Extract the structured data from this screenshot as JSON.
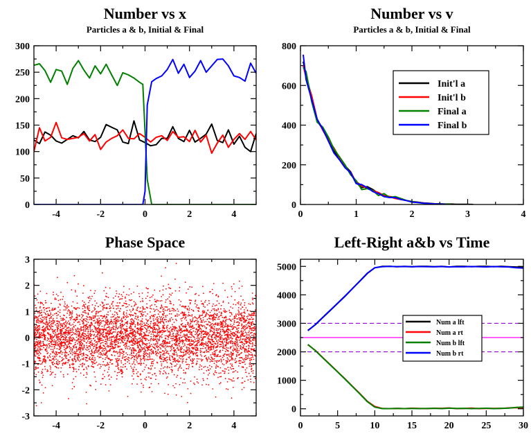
{
  "chart_data": [
    {
      "id": "number-vs-x",
      "type": "line",
      "title": "Number vs x",
      "subtitle": "Particles a & b, Initial & Final",
      "xlabel": "",
      "ylabel": "",
      "xlim": [
        -5,
        5
      ],
      "ylim": [
        0,
        300
      ],
      "xticks": [
        -4,
        -2,
        0,
        2,
        4
      ],
      "xtick_labels": [
        "-4",
        "-2",
        "0",
        "2",
        "4"
      ],
      "yticks": [
        0,
        50,
        100,
        150,
        200,
        250,
        300
      ],
      "ytick_labels": [
        "0",
        "50",
        "100",
        "150",
        "200",
        "250",
        "300"
      ],
      "legend": false,
      "series": [
        {
          "color": "#000000",
          "x": [
            -5,
            -4.75,
            -4.5,
            -4.25,
            -4,
            -3.75,
            -3.5,
            -3.25,
            -3,
            -2.75,
            -2.5,
            -2.25,
            -2,
            -1.75,
            -1.5,
            -1.25,
            -1,
            -0.75,
            -0.5,
            -0.25,
            0,
            0.25,
            0.5,
            0.75,
            1,
            1.25,
            1.5,
            1.75,
            2,
            2.25,
            2.5,
            2.75,
            3,
            3.25,
            3.5,
            3.75,
            4,
            4.25,
            4.5,
            4.75,
            5
          ],
          "y": [
            122,
            115,
            137,
            131,
            120,
            116,
            123,
            130,
            126,
            138,
            122,
            119,
            127,
            151,
            146,
            141,
            118,
            115,
            158,
            122,
            117,
            111,
            113,
            125,
            125,
            147,
            125,
            119,
            140,
            118,
            125,
            133,
            152,
            121,
            117,
            141,
            114,
            129,
            108,
            100,
            134
          ]
        },
        {
          "color": "#ff0000",
          "x": [
            -5,
            -4.75,
            -4.5,
            -4.25,
            -4,
            -3.75,
            -3.5,
            -3.25,
            -3,
            -2.75,
            -2.5,
            -2.25,
            -2,
            -1.75,
            -1.5,
            -1.25,
            -1,
            -0.75,
            -0.5,
            -0.25,
            0,
            0.25,
            0.5,
            0.75,
            1,
            1.25,
            1.5,
            1.75,
            2,
            2.25,
            2.5,
            2.75,
            3,
            3.25,
            3.5,
            3.75,
            4,
            4.25,
            4.5,
            4.75,
            5
          ],
          "y": [
            100,
            145,
            120,
            127,
            155,
            126,
            123,
            125,
            127,
            134,
            120,
            132,
            104,
            118,
            125,
            130,
            141,
            125,
            124,
            134,
            127,
            118,
            127,
            130,
            121,
            138,
            127,
            128,
            119,
            140,
            118,
            131,
            97,
            116,
            131,
            108,
            123,
            134,
            123,
            138,
            122
          ]
        },
        {
          "color": "#008000",
          "x": [
            -5,
            -4.75,
            -4.5,
            -4.25,
            -4,
            -3.75,
            -3.5,
            -3.25,
            -3,
            -2.75,
            -2.5,
            -2.25,
            -2,
            -1.75,
            -1.5,
            -1.25,
            -1,
            -0.75,
            -0.5,
            -0.25,
            -0.1,
            0.1,
            0.3,
            5
          ],
          "y": [
            263,
            266,
            253,
            231,
            255,
            252,
            227,
            257,
            272,
            254,
            239,
            262,
            247,
            265,
            245,
            225,
            249,
            245,
            239,
            231,
            227,
            47,
            0,
            0
          ]
        },
        {
          "color": "#0000ff",
          "x": [
            -5,
            -0.1,
            0,
            0.1,
            0.3,
            0.5,
            0.75,
            1,
            1.25,
            1.5,
            1.75,
            2,
            2.25,
            2.5,
            2.75,
            3,
            3.25,
            3.5,
            3.75,
            4,
            4.25,
            4.5,
            4.75,
            5
          ],
          "y": [
            0,
            0,
            25,
            188,
            232,
            238,
            243,
            255,
            274,
            248,
            265,
            240,
            252,
            272,
            250,
            262,
            274,
            275,
            262,
            243,
            240,
            233,
            267,
            248
          ]
        }
      ]
    },
    {
      "id": "number-vs-v",
      "type": "line",
      "title": "Number vs v",
      "subtitle": "Particles a & b, Initial & Final",
      "xlabel": "",
      "ylabel": "",
      "xlim": [
        0,
        4
      ],
      "ylim": [
        0,
        800
      ],
      "xticks": [
        0,
        1,
        2,
        3,
        4
      ],
      "xtick_labels": [
        "0",
        "1",
        "2",
        "3",
        "4"
      ],
      "yticks": [
        0,
        200,
        400,
        600,
        800
      ],
      "ytick_labels": [
        "0",
        "200",
        "400",
        "600",
        "800"
      ],
      "legend": true,
      "legend_position": "top-right",
      "series": [
        {
          "name": "Init'l a",
          "color": "#000000",
          "x": [
            0.05,
            0.1,
            0.2,
            0.3,
            0.4,
            0.5,
            0.6,
            0.7,
            0.8,
            0.9,
            1.0,
            1.1,
            1.2,
            1.3,
            1.4,
            1.5,
            1.6,
            1.7,
            1.8,
            1.9,
            2.0,
            2.1,
            2.2,
            2.3,
            2.4,
            2.5,
            2.6,
            2.7,
            2.8,
            2.9,
            3.0,
            3.1
          ],
          "y": [
            720,
            650,
            540,
            420,
            380,
            330,
            270,
            230,
            195,
            165,
            110,
            85,
            90,
            75,
            55,
            45,
            40,
            35,
            30,
            20,
            15,
            12,
            8,
            6,
            4,
            3,
            2,
            2,
            1,
            1,
            1,
            0
          ]
        },
        {
          "name": "Init'l b",
          "color": "#ff0000",
          "x": [
            0.05,
            0.1,
            0.2,
            0.3,
            0.4,
            0.5,
            0.6,
            0.7,
            0.8,
            0.9,
            1.0,
            1.1,
            1.2,
            1.3,
            1.4,
            1.5,
            1.6,
            1.7,
            1.8,
            1.9,
            2.0,
            2.1,
            2.2,
            2.3,
            2.4,
            2.5
          ],
          "y": [
            700,
            640,
            550,
            430,
            375,
            325,
            285,
            235,
            190,
            160,
            115,
            95,
            80,
            70,
            60,
            45,
            40,
            30,
            25,
            20,
            15,
            10,
            8,
            5,
            3,
            2
          ]
        },
        {
          "name": "Final a",
          "color": "#008000",
          "x": [
            0.05,
            0.1,
            0.2,
            0.3,
            0.4,
            0.5,
            0.6,
            0.7,
            0.8,
            0.9,
            1.0,
            1.1,
            1.2,
            1.3,
            1.4,
            1.5,
            1.6,
            1.7,
            1.8,
            1.9,
            2.0,
            2.1,
            2.2,
            2.3,
            2.4,
            2.5,
            2.6,
            2.7
          ],
          "y": [
            690,
            670,
            520,
            415,
            390,
            340,
            280,
            240,
            200,
            150,
            120,
            75,
            80,
            70,
            45,
            55,
            35,
            40,
            30,
            20,
            15,
            10,
            6,
            4,
            3,
            2,
            1,
            1
          ]
        },
        {
          "name": "Final b",
          "color": "#0000ff",
          "x": [
            0.05,
            0.1,
            0.2,
            0.3,
            0.4,
            0.5,
            0.6,
            0.7,
            0.8,
            0.9,
            1.0,
            1.1,
            1.2,
            1.3,
            1.4,
            1.5,
            1.6,
            1.7,
            1.8,
            1.9,
            2.0,
            2.1,
            2.2,
            2.3,
            2.4,
            2.5,
            2.6
          ],
          "y": [
            755,
            630,
            530,
            430,
            380,
            320,
            260,
            225,
            185,
            160,
            105,
            100,
            85,
            65,
            55,
            40,
            35,
            35,
            25,
            20,
            12,
            10,
            7,
            5,
            3,
            2,
            1
          ]
        }
      ]
    },
    {
      "id": "phase-space",
      "type": "scatter",
      "title": "Phase Space",
      "xlabel": "",
      "ylabel": "",
      "xlim": [
        -5,
        5
      ],
      "ylim": [
        -3,
        3
      ],
      "xticks": [
        -4,
        -2,
        0,
        2,
        4
      ],
      "xtick_labels": [
        "-4",
        "-2",
        "0",
        "2",
        "4"
      ],
      "yticks": [
        -3,
        -2,
        -1,
        0,
        1,
        2,
        3
      ],
      "ytick_labels": [
        "-3",
        "-2",
        "-1",
        "0",
        "1",
        "2",
        "3"
      ],
      "legend": false,
      "point_color": "#ff0000",
      "point_count": 5000,
      "distribution": "x uniform on [-5,5], v normal with mean 0 and standard deviation 0.75"
    },
    {
      "id": "left-right-vs-time",
      "type": "line",
      "title": "Left-Right  a&b vs Time",
      "xlabel": "",
      "ylabel": "",
      "xlim": [
        0,
        30
      ],
      "ylim": [
        -250,
        5250
      ],
      "xticks": [
        0,
        5,
        10,
        15,
        20,
        25,
        30
      ],
      "xtick_labels": [
        "0",
        "5",
        "10",
        "15",
        "20",
        "25",
        "30"
      ],
      "yticks": [
        0,
        1000,
        2000,
        3000,
        4000,
        5000
      ],
      "ytick_labels": [
        "0",
        "1000",
        "2000",
        "3000",
        "4000",
        "5000"
      ],
      "legend": true,
      "legend_position": "center",
      "reference_lines": [
        {
          "y": 3000,
          "color": "#9400d3",
          "style": "dashed"
        },
        {
          "y": 2500,
          "color": "#ff00ff",
          "style": "solid"
        },
        {
          "y": 2000,
          "color": "#9400d3",
          "style": "dashed"
        }
      ],
      "series": [
        {
          "name": "Num a lft",
          "color": "#000000",
          "x": [
            1,
            2,
            3,
            4,
            5,
            6,
            7,
            8,
            9,
            10,
            11,
            12,
            13,
            14,
            15,
            16,
            17,
            18,
            19,
            20,
            21,
            22,
            23,
            24,
            25,
            26,
            27,
            28,
            29,
            30
          ],
          "y": [
            2750,
            2950,
            3200,
            3450,
            3700,
            3950,
            4220,
            4480,
            4750,
            4950,
            5000,
            5000,
            4990,
            5000,
            4990,
            5000,
            5000,
            4990,
            5000,
            4980,
            5000,
            5000,
            4990,
            5000,
            5000,
            4990,
            5000,
            4990,
            4980,
            4960
          ]
        },
        {
          "name": "Num a rt",
          "color": "#ff0000",
          "x": [
            1,
            2,
            3,
            4,
            5,
            6,
            7,
            8,
            9,
            10,
            11,
            12,
            13,
            14,
            15,
            16,
            17,
            18,
            19,
            20,
            21,
            22,
            23,
            24,
            25,
            26,
            27,
            28,
            29,
            30
          ],
          "y": [
            2250,
            2050,
            1800,
            1550,
            1300,
            1050,
            790,
            530,
            260,
            80,
            10,
            5,
            15,
            5,
            20,
            10,
            5,
            20,
            15,
            30,
            5,
            10,
            25,
            5,
            10,
            15,
            10,
            30,
            40,
            35
          ]
        },
        {
          "name": "Num b lft",
          "color": "#008000",
          "x": [
            1,
            2,
            3,
            4,
            5,
            6,
            7,
            8,
            9,
            10,
            11,
            12,
            13,
            14,
            15,
            16,
            17,
            18,
            19,
            20,
            21,
            22,
            23,
            24,
            25,
            26,
            27,
            28,
            29,
            30
          ],
          "y": [
            2260,
            2040,
            1790,
            1540,
            1290,
            1040,
            780,
            520,
            250,
            60,
            5,
            5,
            10,
            5,
            10,
            5,
            10,
            15,
            5,
            20,
            10,
            15,
            5,
            10,
            20,
            5,
            15,
            20,
            50,
            60
          ]
        },
        {
          "name": "Num b rt",
          "color": "#0000ff",
          "x": [
            1,
            2,
            3,
            4,
            5,
            6,
            7,
            8,
            9,
            10,
            11,
            12,
            13,
            14,
            15,
            16,
            17,
            18,
            19,
            20,
            21,
            22,
            23,
            24,
            25,
            26,
            27,
            28,
            29,
            30
          ],
          "y": [
            2740,
            2960,
            3210,
            3460,
            3710,
            3960,
            4220,
            4490,
            4760,
            4950,
            4990,
            5000,
            4990,
            4995,
            4985,
            4995,
            4990,
            4985,
            4995,
            4980,
            4990,
            4985,
            4995,
            4990,
            4980,
            4995,
            4985,
            4980,
            4950,
            4940
          ]
        }
      ]
    }
  ]
}
